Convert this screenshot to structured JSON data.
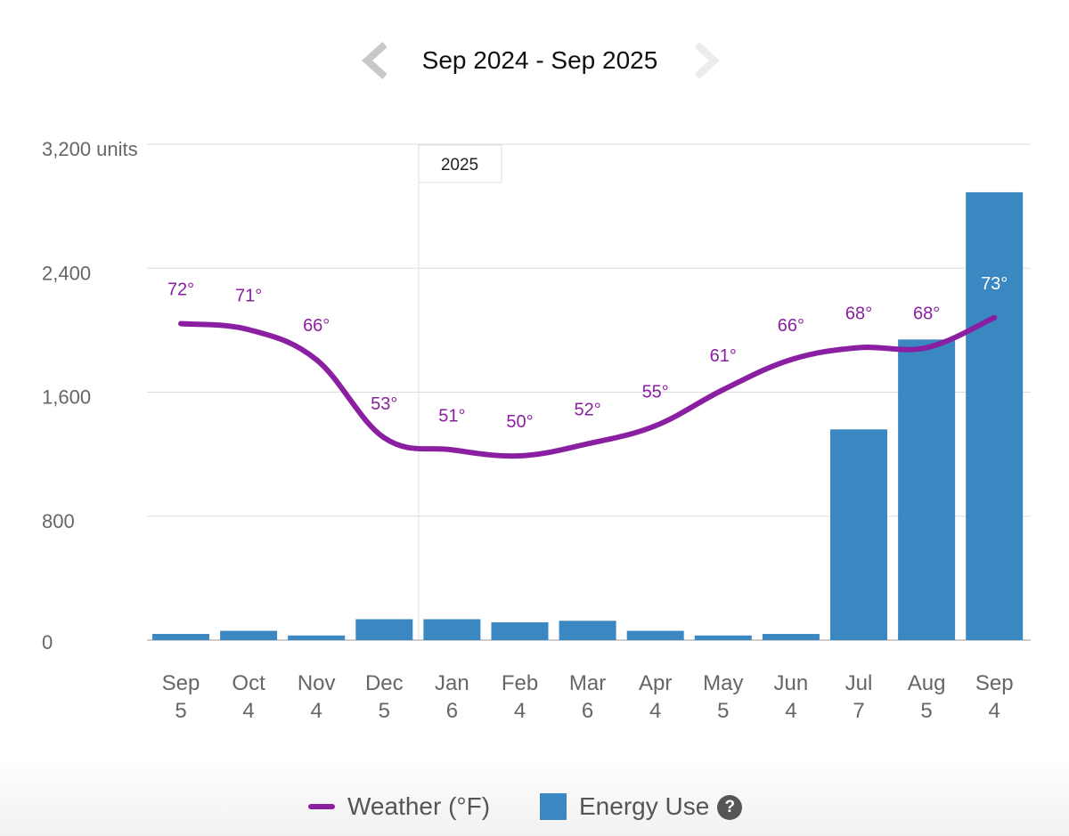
{
  "header": {
    "date_range": "Sep 2024 - Sep 2025",
    "prev_icon": "chevron-left-icon",
    "next_icon": "chevron-right-icon"
  },
  "year_marker": {
    "label": "2025",
    "position": "between Dec and Jan"
  },
  "legend": {
    "weather_label": "Weather (°F)",
    "energy_label": "Energy Use",
    "help_label": "?",
    "help_icon": "help-circle-icon"
  },
  "colors": {
    "bar": "#3a87c2",
    "weather": "#8b1fa1",
    "grid": "#dddddd",
    "axis_text": "#666666",
    "nav_arrow": "#c8c8c8"
  },
  "chart_data": {
    "type": "bar",
    "title": "",
    "xlabel": "",
    "ylabel": "units",
    "ylim": [
      0,
      3200
    ],
    "y_ticks": [
      {
        "value": 0,
        "label": "0"
      },
      {
        "value": 800,
        "label": "800"
      },
      {
        "value": 1600,
        "label": "1,600"
      },
      {
        "value": 2400,
        "label": "2,400"
      },
      {
        "value": 3200,
        "label": "3,200 units"
      }
    ],
    "grid": true,
    "legend_position": "bottom",
    "categories": [
      {
        "month": "Sep",
        "day": "5"
      },
      {
        "month": "Oct",
        "day": "4"
      },
      {
        "month": "Nov",
        "day": "4"
      },
      {
        "month": "Dec",
        "day": "5"
      },
      {
        "month": "Jan",
        "day": "6"
      },
      {
        "month": "Feb",
        "day": "4"
      },
      {
        "month": "Mar",
        "day": "6"
      },
      {
        "month": "Apr",
        "day": "4"
      },
      {
        "month": "May",
        "day": "5"
      },
      {
        "month": "Jun",
        "day": "4"
      },
      {
        "month": "Jul",
        "day": "7"
      },
      {
        "month": "Aug",
        "day": "5"
      },
      {
        "month": "Sep",
        "day": "4"
      }
    ],
    "series": [
      {
        "name": "Energy Use",
        "type": "bar",
        "values": [
          40,
          60,
          30,
          135,
          135,
          115,
          125,
          60,
          30,
          40,
          1360,
          1940,
          2890
        ]
      },
      {
        "name": "Weather (°F)",
        "type": "line",
        "values": [
          72,
          71,
          66,
          53,
          51,
          50,
          52,
          55,
          61,
          66,
          68,
          68,
          73
        ],
        "labels": [
          "72°",
          "71°",
          "66°",
          "53°",
          "51°",
          "50°",
          "52°",
          "55°",
          "61°",
          "66°",
          "68°",
          "68°",
          "73°"
        ]
      }
    ]
  }
}
